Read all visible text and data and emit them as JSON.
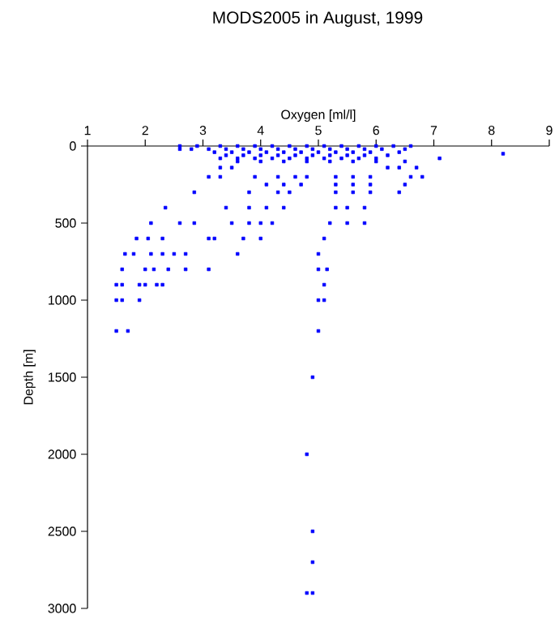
{
  "chart_data": {
    "type": "scatter",
    "title": "MODS2005 in August, 1999",
    "xlabel": "Oxygen [ml/l]",
    "ylabel": "Depth [m]",
    "xlim": [
      1,
      9
    ],
    "xticks": [
      1,
      2,
      3,
      4,
      5,
      6,
      7,
      8,
      9
    ],
    "ylim": [
      3000,
      0
    ],
    "yticks": [
      0,
      500,
      1000,
      1500,
      2000,
      2500,
      3000
    ],
    "marker": "square",
    "series": [
      {
        "color": "#0000ff",
        "x": [
          2.6,
          2.9,
          3.3,
          3.6,
          3.9,
          4.2,
          4.5,
          4.8,
          5.1,
          5.4,
          5.7,
          6.0,
          6.3,
          6.6,
          2.6,
          2.8,
          3.1,
          3.4,
          3.7,
          4.0,
          4.3,
          4.6,
          4.9,
          5.2,
          5.5,
          5.8,
          6.1,
          6.5,
          3.2,
          3.5,
          3.8,
          4.1,
          4.4,
          4.7,
          5.0,
          5.3,
          5.6,
          5.9,
          6.4,
          8.2,
          3.4,
          3.7,
          4.0,
          4.3,
          4.6,
          4.9,
          5.2,
          5.5,
          5.8,
          6.2,
          7.1,
          3.3,
          3.6,
          3.9,
          4.2,
          4.5,
          4.8,
          5.1,
          5.4,
          5.7,
          6.0,
          3.6,
          4.0,
          4.4,
          4.8,
          5.2,
          5.6,
          6.0,
          6.5,
          3.3,
          3.5,
          6.2,
          6.4,
          6.7,
          3.1,
          3.3,
          3.9,
          4.3,
          4.6,
          4.8,
          5.3,
          5.6,
          5.9,
          6.6,
          6.8,
          4.1,
          4.4,
          4.7,
          5.3,
          5.6,
          5.9,
          6.5,
          2.85,
          3.8,
          4.3,
          4.5,
          5.3,
          5.6,
          5.9,
          6.4,
          2.35,
          3.4,
          3.8,
          4.1,
          4.4,
          5.3,
          5.5,
          5.8,
          2.1,
          2.6,
          2.85,
          3.5,
          3.8,
          4.0,
          4.2,
          5.2,
          5.5,
          5.8,
          1.85,
          2.05,
          2.3,
          3.1,
          3.2,
          3.7,
          4.0,
          5.1,
          1.65,
          1.8,
          2.1,
          2.3,
          2.5,
          2.7,
          3.6,
          5.0,
          1.6,
          2.0,
          2.15,
          2.4,
          2.7,
          3.1,
          5.0,
          5.15,
          1.5,
          1.6,
          1.9,
          2.0,
          2.2,
          2.3,
          5.1,
          1.5,
          1.6,
          1.9,
          5.0,
          5.1,
          1.5,
          1.7,
          5.0,
          4.9,
          4.8,
          4.9,
          4.9,
          4.8,
          4.9
        ],
        "values": [
          0,
          0,
          0,
          0,
          0,
          0,
          0,
          0,
          0,
          0,
          0,
          0,
          0,
          0,
          20,
          20,
          20,
          20,
          20,
          20,
          20,
          20,
          20,
          20,
          20,
          20,
          20,
          20,
          40,
          40,
          40,
          40,
          40,
          40,
          40,
          40,
          40,
          40,
          40,
          50,
          60,
          60,
          60,
          60,
          60,
          60,
          60,
          60,
          60,
          60,
          80,
          80,
          80,
          80,
          80,
          80,
          80,
          80,
          80,
          80,
          80,
          100,
          100,
          100,
          100,
          100,
          100,
          100,
          100,
          140,
          140,
          140,
          140,
          140,
          200,
          200,
          200,
          200,
          200,
          200,
          200,
          200,
          200,
          200,
          200,
          250,
          250,
          250,
          250,
          250,
          250,
          250,
          300,
          300,
          300,
          300,
          300,
          300,
          300,
          300,
          400,
          400,
          400,
          400,
          400,
          400,
          400,
          400,
          500,
          500,
          500,
          500,
          500,
          500,
          500,
          500,
          500,
          500,
          600,
          600,
          600,
          600,
          600,
          600,
          600,
          600,
          700,
          700,
          700,
          700,
          700,
          700,
          700,
          700,
          800,
          800,
          800,
          800,
          800,
          800,
          800,
          800,
          900,
          900,
          900,
          900,
          900,
          900,
          900,
          1000,
          1000,
          1000,
          1000,
          1000,
          1200,
          1200,
          1200,
          1500,
          2000,
          2500,
          2700,
          2900,
          2900
        ]
      }
    ]
  }
}
